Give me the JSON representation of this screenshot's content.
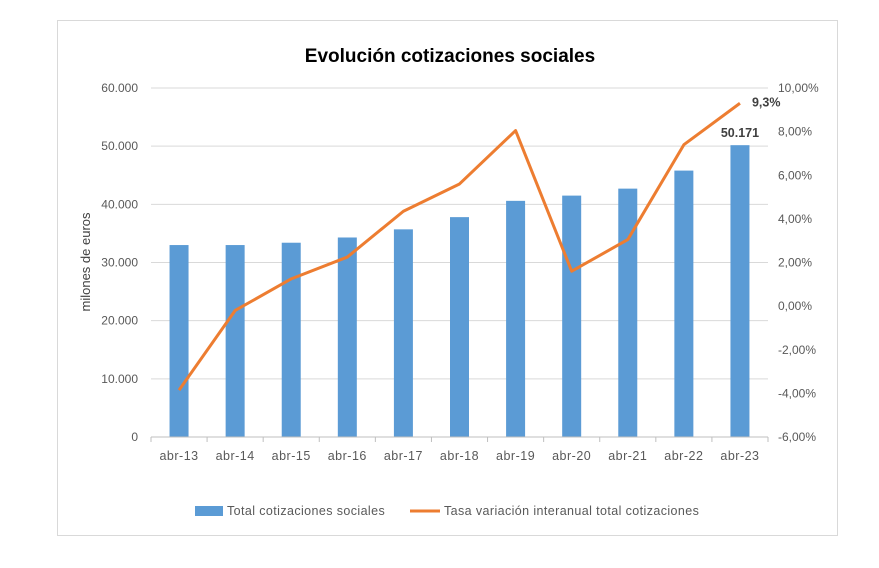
{
  "chart_data": {
    "type": "bar+line",
    "title": "Evolución cotizaciones sociales",
    "ylabel": "milones de euros",
    "y2label": "",
    "categories": [
      "abr-13",
      "abr-14",
      "abr-15",
      "abr-16",
      "abr-17",
      "abr-18",
      "abr-19",
      "abr-20",
      "abr-21",
      "abr-22",
      "abr-23"
    ],
    "ylim": [
      0,
      60000
    ],
    "y_ticks": [
      "0",
      "10.000",
      "20.000",
      "30.000",
      "40.000",
      "50.000",
      "60.000"
    ],
    "y2lim": [
      -6,
      10
    ],
    "y2_ticks": [
      "-6,00%",
      "-4,00%",
      "-2,00%",
      "0,00%",
      "2,00%",
      "4,00%",
      "6,00%",
      "8,00%",
      "10,00%"
    ],
    "grid": true,
    "legend_placement": "bottom",
    "series": [
      {
        "name": "Total cotizaciones sociales",
        "type": "bar",
        "axis": "left",
        "color": "#5b9bd5",
        "values": [
          33000,
          33000,
          33400,
          34300,
          35700,
          37800,
          40600,
          41500,
          42700,
          45800,
          50171
        ]
      },
      {
        "name": "Tasa variación interanual total cotizaciones",
        "type": "line",
        "axis": "right",
        "color": "#ed7d31",
        "values": [
          -3.85,
          -0.2,
          1.25,
          2.25,
          4.35,
          5.6,
          8.05,
          1.6,
          3.05,
          7.4,
          9.3
        ]
      }
    ],
    "annotations": [
      {
        "text": "50.171",
        "series": 0,
        "category": "abr-23"
      },
      {
        "text": "9,3%",
        "series": 1,
        "category": "abr-23"
      }
    ]
  }
}
